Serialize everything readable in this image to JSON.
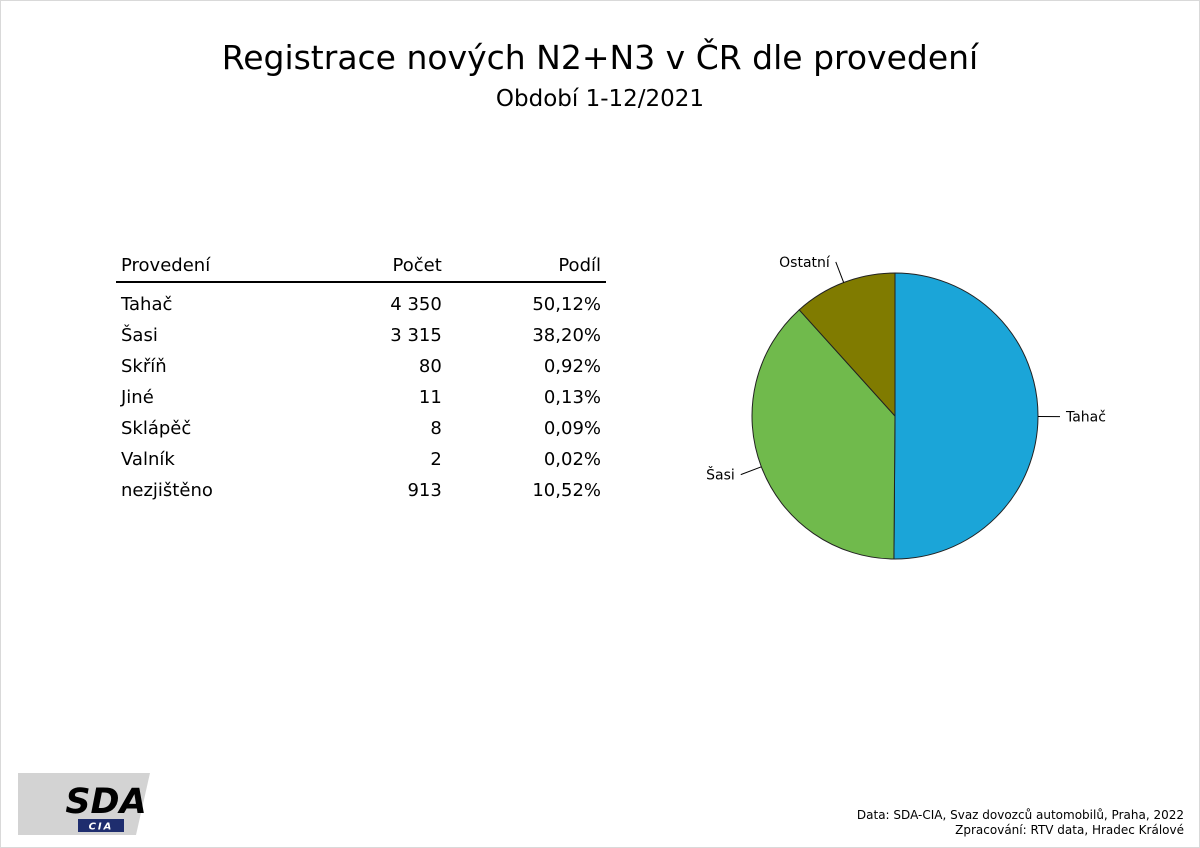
{
  "title": "Registrace nových N2+N3 v ČR dle provedení",
  "subtitle": "Období 1-12/2021",
  "table": {
    "headers": [
      "Provedení",
      "Počet",
      "Podíl"
    ],
    "rows": [
      {
        "name": "Tahač",
        "count": "4 350",
        "share": "50,12%"
      },
      {
        "name": "Šasi",
        "count": "3 315",
        "share": "38,20%"
      },
      {
        "name": "Skříň",
        "count": "80",
        "share": "0,92%"
      },
      {
        "name": "Jiné",
        "count": "11",
        "share": "0,13%"
      },
      {
        "name": "Sklápěč",
        "count": "8",
        "share": "0,09%"
      },
      {
        "name": "Valník",
        "count": "2",
        "share": "0,02%"
      },
      {
        "name": "nezjištěno",
        "count": "913",
        "share": "10,52%"
      }
    ]
  },
  "chart_data": {
    "type": "pie",
    "slices": [
      {
        "label": "Tahač",
        "value": 4350,
        "color": "#1ba5d8"
      },
      {
        "label": "Šasi",
        "value": 3315,
        "color": "#70ba4c"
      },
      {
        "label": "Ostatní",
        "value": 1014,
        "color": "#807b00"
      }
    ]
  },
  "logo": {
    "main": "SDA",
    "sub": "CIA"
  },
  "footer": {
    "line1": "Data: SDA-CIA, Svaz dovozců automobilů, Praha, 2022",
    "line2": "Zpracování: RTV data, Hradec Králové"
  }
}
